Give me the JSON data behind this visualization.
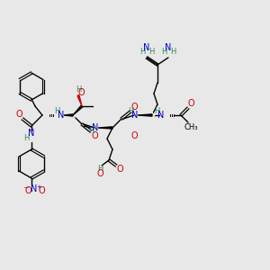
{
  "bg_color": "#e8e8e8",
  "colors": {
    "C": "#000000",
    "N": "#0000cc",
    "O": "#cc0000",
    "H": "#2e8b57",
    "bond": "#000000"
  },
  "fs": 7.0,
  "fs_small": 6.0
}
